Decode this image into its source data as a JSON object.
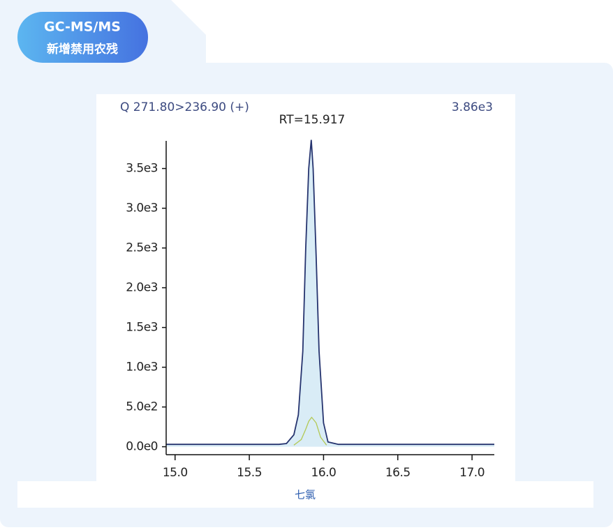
{
  "badge": {
    "line1": "GC-MS/MS",
    "line2": "新增禁用农残"
  },
  "caption": "七氯",
  "chart_data": {
    "type": "line",
    "title": "Q 271.80>236.90 (+)",
    "annotations": [
      "3.86e3",
      "RT=15.917"
    ],
    "xlim": [
      14.94,
      17.15
    ],
    "xticks": [
      {
        "value": 15,
        "label": "15.0"
      },
      {
        "value": 15.5,
        "label": "15.5"
      },
      {
        "value": 16,
        "label": "16.0"
      },
      {
        "value": 16.5,
        "label": "16.5"
      },
      {
        "value": 17,
        "label": "17.0"
      }
    ],
    "ylim": [
      -100,
      3900
    ],
    "yticks": [
      {
        "value": 0,
        "label": "0.0e0"
      },
      {
        "value": 500,
        "label": "5.0e2"
      },
      {
        "value": 1000,
        "label": "1.0e3"
      },
      {
        "value": 1500,
        "label": "1.5e3"
      },
      {
        "value": 2000,
        "label": "2.0e3"
      },
      {
        "value": 2500,
        "label": "2.5e3"
      },
      {
        "value": 3000,
        "label": "3.0e3"
      },
      {
        "value": 3500,
        "label": "3.5e3"
      }
    ],
    "fill_color": "#d9ecf6",
    "series": [
      {
        "color": "#26346f",
        "x": [
          14.94,
          15.7,
          15.75,
          15.8,
          15.83,
          15.86,
          15.88,
          15.9,
          15.917,
          15.93,
          15.95,
          15.97,
          16.0,
          16.03,
          16.1,
          17.15
        ],
        "values": [
          30,
          30,
          40,
          150,
          400,
          1200,
          2500,
          3500,
          3860,
          3500,
          2400,
          1200,
          300,
          60,
          30,
          30
        ]
      },
      {
        "color": "#b3c955",
        "x": [
          15.8,
          15.85,
          15.88,
          15.9,
          15.92,
          15.95,
          15.98,
          16.02
        ],
        "values": [
          20,
          90,
          220,
          320,
          370,
          300,
          120,
          20
        ]
      }
    ]
  }
}
